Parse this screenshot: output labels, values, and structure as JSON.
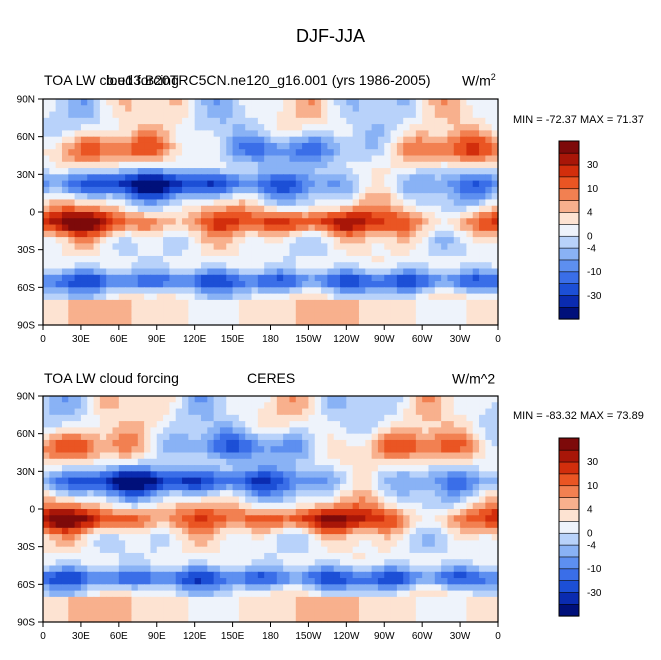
{
  "page_title": "DJF-JJA",
  "panels": [
    {
      "left_title": "TOA LW cloud forcing",
      "center_title": "b.e13.B20TRC5CN.ne120_g16.001 (yrs 1986-2005)",
      "units_base": "W/m",
      "units_exp": "2",
      "minmax": "MIN = -72.37 MAX =  71.37"
    },
    {
      "left_title": "TOA LW cloud forcing",
      "center_title": "CERES",
      "units_base": "W/m^2",
      "units_exp": "",
      "minmax": "MIN = -83.32 MAX =  73.89"
    }
  ],
  "colorbar": {
    "colors": [
      "#00107a",
      "#0a2bb0",
      "#1c4fd6",
      "#3a6ee8",
      "#5d8ff0",
      "#89b2f5",
      "#b8d2fa",
      "#eef3fb",
      "#fde3d2",
      "#f8b08d",
      "#f28051",
      "#ea5523",
      "#d22e0c",
      "#a81608",
      "#7d0a0a"
    ],
    "labels": [
      "-30",
      "-10",
      "-4",
      "0",
      "4",
      "10",
      "30"
    ]
  },
  "chart_data": [
    {
      "type": "heatmap",
      "title": "TOA LW cloud forcing — b.e13.B20TRC5CN.ne120_g16.001 (yrs 1986-2005)",
      "x_tick_labels": [
        "0",
        "30E",
        "60E",
        "90E",
        "120E",
        "150E",
        "180",
        "150W",
        "120W",
        "90W",
        "60W",
        "30W",
        "0"
      ],
      "y_tick_labels": [
        "90S",
        "60S",
        "30S",
        "0",
        "30N",
        "60N",
        "90N"
      ],
      "xlim": [
        0,
        360
      ],
      "ylim": [
        -90,
        90
      ],
      "units": "W/m2",
      "min": -72.37,
      "max": 71.37,
      "colorbar_levels": [
        -30,
        -10,
        -4,
        0,
        4,
        10,
        30
      ]
    },
    {
      "type": "heatmap",
      "title": "TOA LW cloud forcing — CERES",
      "x_tick_labels": [
        "0",
        "30E",
        "60E",
        "90E",
        "120E",
        "150E",
        "180",
        "150W",
        "120W",
        "90W",
        "60W",
        "30W",
        "0"
      ],
      "y_tick_labels": [
        "90S",
        "60S",
        "30S",
        "0",
        "30N",
        "60N",
        "90N"
      ],
      "xlim": [
        0,
        360
      ],
      "ylim": [
        -90,
        90
      ],
      "units": "W/m^2",
      "min": -83.32,
      "max": 73.89,
      "colorbar_levels": [
        -30,
        -10,
        -4,
        0,
        4,
        10,
        30
      ]
    }
  ]
}
